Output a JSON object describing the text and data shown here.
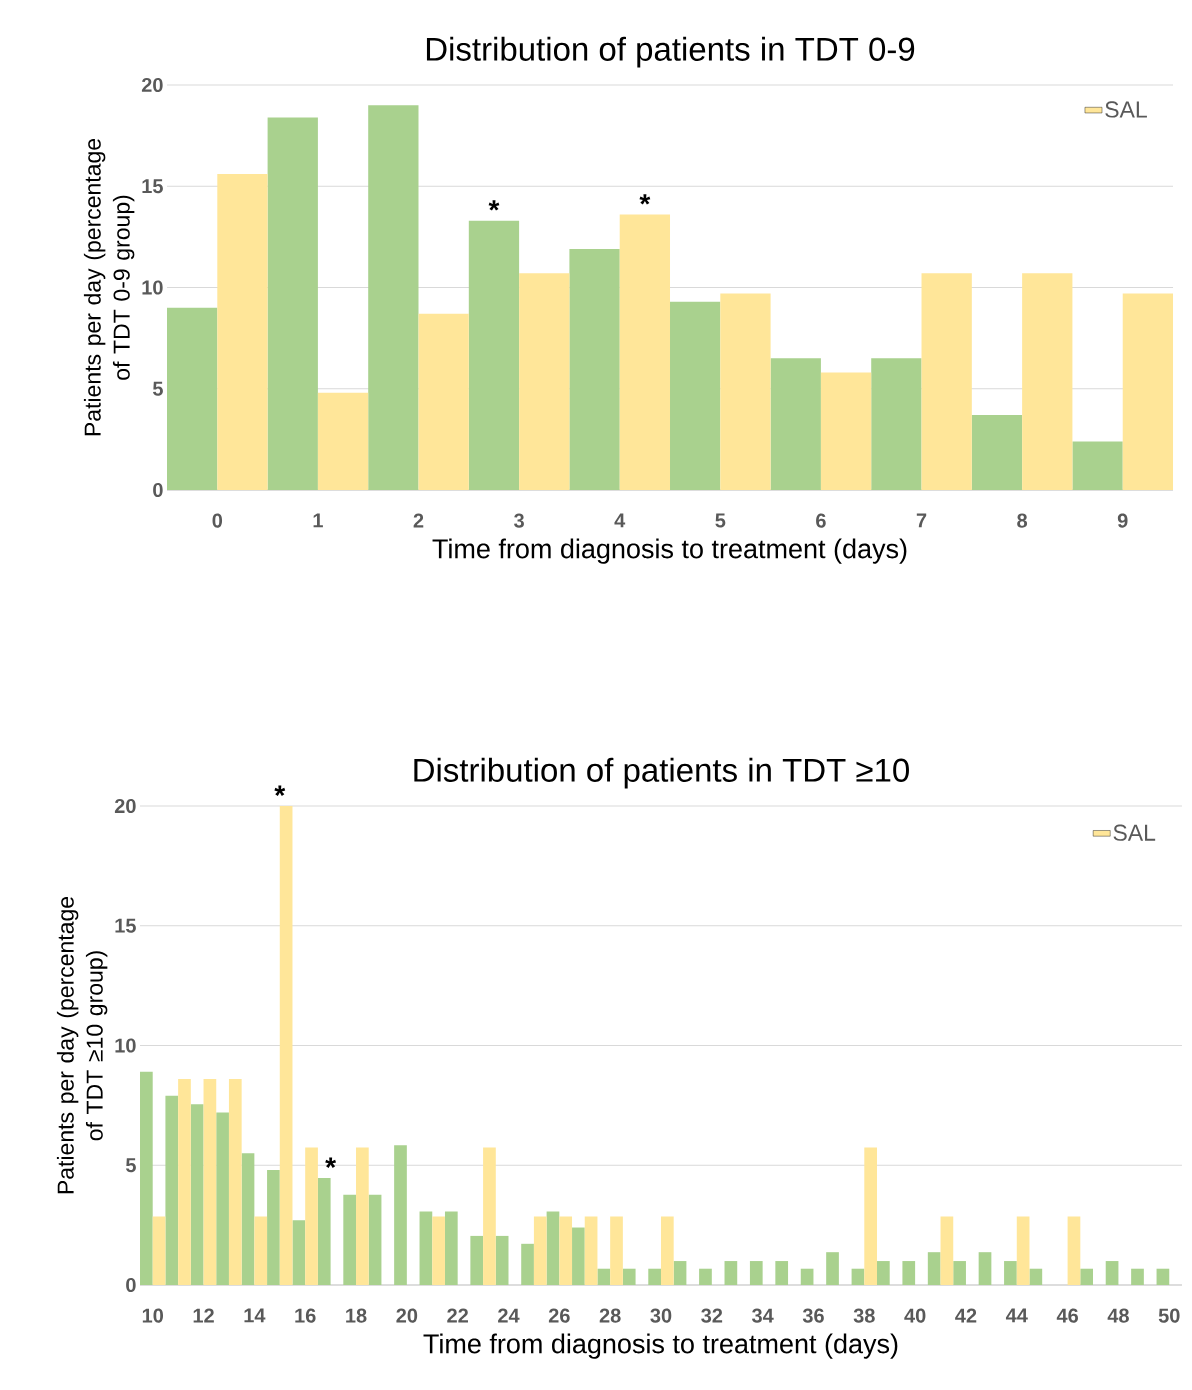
{
  "chart_data": [
    {
      "type": "bar",
      "title": "Distribution of patients in TDT 0-9",
      "xlabel": "Time from diagnosis to treatment (days)",
      "ylabel": "Patients per day (percentage of TDT 0-9 group)",
      "categories": [
        "0",
        "1",
        "2",
        "3",
        "4",
        "5",
        "6",
        "7",
        "8",
        "9"
      ],
      "series": [
        {
          "color": "#a9d18e",
          "values": [
            9.0,
            18.4,
            19.0,
            13.3,
            11.9,
            9.3,
            6.5,
            6.5,
            3.7,
            2.4
          ]
        },
        {
          "name": "SAL",
          "color": "#ffe699",
          "values": [
            15.6,
            4.8,
            8.7,
            10.7,
            13.6,
            9.7,
            5.8,
            10.7,
            10.7,
            9.7
          ]
        }
      ],
      "ylim": [
        0,
        20
      ],
      "yticks": [
        0,
        5,
        10,
        15,
        20
      ],
      "grid": "y",
      "legend": "top right",
      "annotations": [
        {
          "text": "*",
          "x": "3",
          "y": 13.3
        },
        {
          "text": "*",
          "x": "4",
          "y": 13.6
        }
      ]
    },
    {
      "type": "bar",
      "title": "Distribution of patients in TDT ≥10",
      "xlabel": "Time from diagnosis to treatment (days)",
      "ylabel": "Patients per day (percentage of TDT ≥10 group)",
      "x": [
        10,
        11,
        12,
        13,
        14,
        15,
        16,
        17,
        18,
        19,
        20,
        21,
        22,
        23,
        24,
        25,
        26,
        27,
        28,
        29,
        30,
        31,
        32,
        33,
        34,
        35,
        36,
        37,
        38,
        39,
        40,
        41,
        42,
        43,
        44,
        45,
        46,
        47,
        48,
        49,
        50
      ],
      "xlim": [
        9.5,
        50.5
      ],
      "xticks": [
        10,
        12,
        14,
        16,
        18,
        20,
        22,
        24,
        26,
        28,
        30,
        32,
        34,
        36,
        38,
        40,
        42,
        44,
        46,
        48,
        50
      ],
      "series": [
        {
          "color": "#a9d18e",
          "values": [
            8.9,
            7.9,
            7.55,
            7.2,
            5.5,
            4.8,
            2.7,
            4.47,
            3.77,
            3.77,
            5.84,
            3.07,
            3.07,
            2.05,
            2.05,
            1.72,
            3.07,
            2.4,
            0.68,
            0.68,
            0.68,
            1.0,
            0.68,
            1.0,
            1.0,
            1.0,
            0.68,
            1.37,
            0.68,
            1.0,
            1.0,
            1.37,
            1.0,
            1.37,
            1.0,
            0.68,
            null,
            0.68,
            1.0,
            0.68,
            0.68
          ]
        },
        {
          "name": "SAL",
          "color": "#ffe699",
          "values": [
            2.86,
            8.6,
            8.6,
            8.6,
            2.86,
            20,
            5.74,
            null,
            5.74,
            null,
            null,
            2.86,
            null,
            5.74,
            null,
            2.86,
            2.86,
            2.86,
            2.86,
            null,
            2.86,
            null,
            null,
            null,
            null,
            null,
            null,
            null,
            5.74,
            null,
            null,
            2.86,
            null,
            null,
            2.86,
            null,
            2.86,
            null,
            null,
            null,
            null
          ]
        }
      ],
      "ylim": [
        0,
        20
      ],
      "yticks": [
        0,
        5,
        10,
        15,
        20
      ],
      "grid": "y",
      "legend": "top right",
      "annotations": [
        {
          "text": "*",
          "x": 15,
          "y": 20
        },
        {
          "text": "*",
          "x": 17,
          "y": 4.47
        }
      ]
    }
  ]
}
